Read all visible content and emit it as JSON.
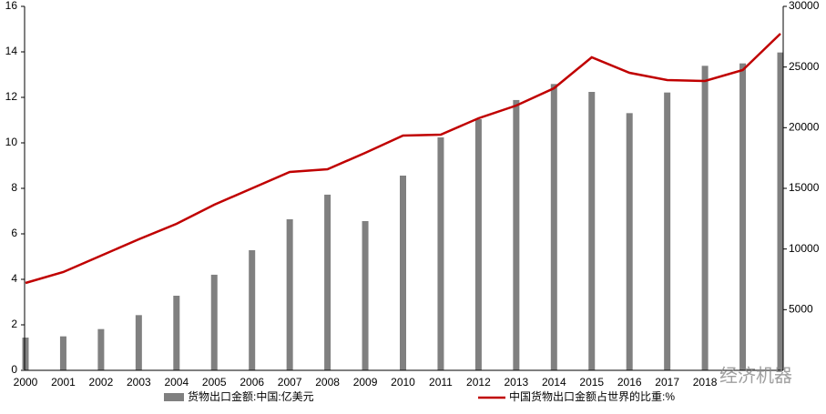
{
  "chart_data": {
    "type": "bar_line",
    "categories": [
      "2000",
      "2001",
      "2002",
      "2003",
      "2004",
      "2005",
      "2006",
      "2007",
      "2008",
      "2009",
      "2010",
      "2011",
      "2012",
      "2013",
      "2014",
      "2015",
      "2016",
      "2017",
      "2018",
      null,
      null
    ],
    "series": [
      {
        "name": "货物出口金额:中国:亿美元",
        "type": "bar",
        "axis": "y2",
        "color": "#808080",
        "values": [
          2700,
          2800,
          3400,
          4550,
          6150,
          7880,
          9900,
          12450,
          14480,
          12300,
          16050,
          19200,
          20700,
          22280,
          23600,
          22950,
          21200,
          22900,
          25100,
          25300,
          26200
        ]
      },
      {
        "name": "中国货物出口金额占世界的比重:%",
        "type": "line",
        "color": "#c00000",
        "values": [
          3.84,
          4.32,
          5.04,
          5.76,
          6.44,
          7.28,
          8.0,
          8.72,
          8.84,
          9.56,
          10.32,
          10.36,
          11.08,
          11.64,
          12.4,
          13.76,
          13.08,
          12.76,
          12.72,
          13.2,
          14.8
        ]
      }
    ],
    "ylim": [
      0,
      16
    ],
    "yticks": [
      0,
      2,
      4,
      6,
      8,
      10,
      12,
      14,
      16
    ],
    "y2lim": [
      0,
      30000
    ],
    "y2ticks": [
      5000,
      10000,
      15000,
      20000,
      25000,
      30000
    ],
    "watermark": "经济机器"
  }
}
